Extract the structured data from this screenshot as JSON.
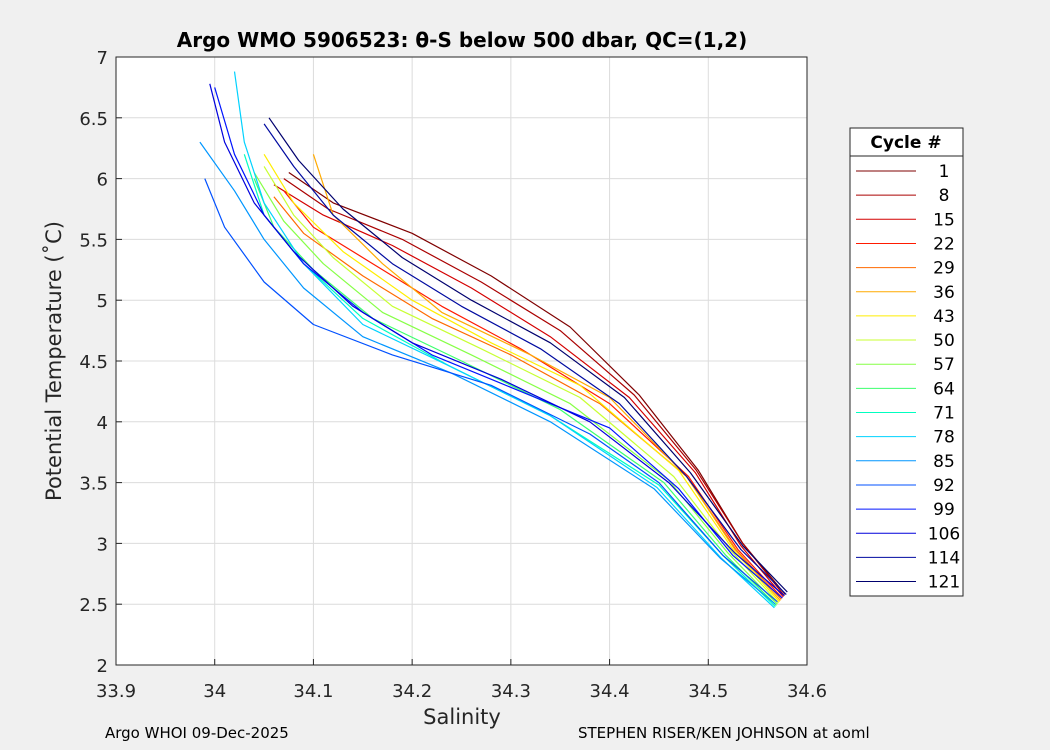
{
  "chart_data": {
    "type": "line",
    "title": "Argo WMO 5906523: θ-S below 500 dbar,  QC=(1,2)",
    "xlabel": "Salinity",
    "ylabel": "Potential Temperature (˚C)",
    "xlim": [
      33.9,
      34.6
    ],
    "ylim": [
      2,
      7
    ],
    "xticks": [
      33.9,
      34.0,
      34.1,
      34.2,
      34.3,
      34.4,
      34.5,
      34.6
    ],
    "xtick_labels": [
      "33.9",
      "34",
      "34.1",
      "34.2",
      "34.3",
      "34.4",
      "34.5",
      "34.6"
    ],
    "yticks": [
      2,
      2.5,
      3,
      3.5,
      4,
      4.5,
      5,
      5.5,
      6,
      6.5,
      7
    ],
    "ytick_labels": [
      "2",
      "2.5",
      "3",
      "3.5",
      "4",
      "4.5",
      "5",
      "5.5",
      "6",
      "6.5",
      "7"
    ],
    "grid": true,
    "legend_title": "Cycle #",
    "legend_position": "right",
    "series": [
      {
        "name": "1",
        "color": "#7f0000",
        "points": [
          [
            34.075,
            6.05
          ],
          [
            34.12,
            5.8
          ],
          [
            34.2,
            5.55
          ],
          [
            34.28,
            5.2
          ],
          [
            34.36,
            4.78
          ],
          [
            34.43,
            4.22
          ],
          [
            34.49,
            3.6
          ],
          [
            34.535,
            3.0
          ],
          [
            34.578,
            2.58
          ]
        ]
      },
      {
        "name": "8",
        "color": "#aa0000",
        "points": [
          [
            34.07,
            6.0
          ],
          [
            34.115,
            5.75
          ],
          [
            34.19,
            5.5
          ],
          [
            34.27,
            5.15
          ],
          [
            34.35,
            4.75
          ],
          [
            34.425,
            4.22
          ],
          [
            34.488,
            3.6
          ],
          [
            34.535,
            3.0
          ],
          [
            34.577,
            2.57
          ]
        ]
      },
      {
        "name": "15",
        "color": "#d40000",
        "points": [
          [
            34.06,
            5.95
          ],
          [
            34.11,
            5.7
          ],
          [
            34.18,
            5.45
          ],
          [
            34.26,
            5.1
          ],
          [
            34.34,
            4.7
          ],
          [
            34.42,
            4.2
          ],
          [
            34.487,
            3.58
          ],
          [
            34.533,
            2.98
          ],
          [
            34.576,
            2.56
          ]
        ]
      },
      {
        "name": "22",
        "color": "#ff1a00",
        "points": [
          [
            34.07,
            5.9
          ],
          [
            34.1,
            5.6
          ],
          [
            34.16,
            5.3
          ],
          [
            34.23,
            4.95
          ],
          [
            34.31,
            4.6
          ],
          [
            34.4,
            4.15
          ],
          [
            34.48,
            3.55
          ],
          [
            34.53,
            2.95
          ],
          [
            34.575,
            2.55
          ]
        ]
      },
      {
        "name": "29",
        "color": "#ff6a00",
        "points": [
          [
            34.06,
            5.85
          ],
          [
            34.09,
            5.55
          ],
          [
            34.15,
            5.2
          ],
          [
            34.22,
            4.85
          ],
          [
            34.3,
            4.55
          ],
          [
            34.39,
            4.15
          ],
          [
            34.478,
            3.55
          ],
          [
            34.528,
            2.95
          ],
          [
            34.574,
            2.54
          ]
        ]
      },
      {
        "name": "36",
        "color": "#ffaa00",
        "points": [
          [
            34.1,
            6.2
          ],
          [
            34.12,
            5.7
          ],
          [
            34.17,
            5.3
          ],
          [
            34.23,
            4.9
          ],
          [
            34.32,
            4.55
          ],
          [
            34.4,
            4.2
          ],
          [
            34.478,
            3.55
          ],
          [
            34.527,
            2.95
          ],
          [
            34.573,
            2.53
          ]
        ]
      },
      {
        "name": "43",
        "color": "#ffee00",
        "points": [
          [
            34.05,
            6.2
          ],
          [
            34.08,
            5.8
          ],
          [
            34.13,
            5.4
          ],
          [
            34.2,
            5.0
          ],
          [
            34.28,
            4.65
          ],
          [
            34.37,
            4.3
          ],
          [
            34.47,
            3.6
          ],
          [
            34.525,
            2.95
          ],
          [
            34.572,
            2.52
          ]
        ]
      },
      {
        "name": "50",
        "color": "#c8ff32",
        "points": [
          [
            34.05,
            6.1
          ],
          [
            34.08,
            5.7
          ],
          [
            34.12,
            5.35
          ],
          [
            34.18,
            4.95
          ],
          [
            34.27,
            4.6
          ],
          [
            34.37,
            4.2
          ],
          [
            34.465,
            3.55
          ],
          [
            34.523,
            2.94
          ],
          [
            34.571,
            2.51
          ]
        ]
      },
      {
        "name": "57",
        "color": "#86ff46",
        "points": [
          [
            34.04,
            6.05
          ],
          [
            34.07,
            5.65
          ],
          [
            34.11,
            5.3
          ],
          [
            34.17,
            4.9
          ],
          [
            34.26,
            4.55
          ],
          [
            34.36,
            4.15
          ],
          [
            34.46,
            3.52
          ],
          [
            34.52,
            2.92
          ],
          [
            34.57,
            2.5
          ]
        ]
      },
      {
        "name": "64",
        "color": "#3cff6e",
        "points": [
          [
            34.04,
            6.0
          ],
          [
            34.06,
            5.6
          ],
          [
            34.1,
            5.25
          ],
          [
            34.16,
            4.85
          ],
          [
            34.25,
            4.5
          ],
          [
            34.35,
            4.1
          ],
          [
            34.455,
            3.5
          ],
          [
            34.518,
            2.9
          ],
          [
            34.569,
            2.49
          ]
        ]
      },
      {
        "name": "71",
        "color": "#00ffc0",
        "points": [
          [
            34.03,
            6.2
          ],
          [
            34.05,
            5.7
          ],
          [
            34.09,
            5.3
          ],
          [
            34.15,
            4.85
          ],
          [
            34.24,
            4.45
          ],
          [
            34.34,
            4.05
          ],
          [
            34.45,
            3.48
          ],
          [
            34.515,
            2.9
          ],
          [
            34.568,
            2.48
          ]
        ]
      },
      {
        "name": "78",
        "color": "#00d2ff",
        "points": [
          [
            34.02,
            6.88
          ],
          [
            34.03,
            6.3
          ],
          [
            34.05,
            5.8
          ],
          [
            34.09,
            5.3
          ],
          [
            34.15,
            4.8
          ],
          [
            34.24,
            4.45
          ],
          [
            34.34,
            4.05
          ],
          [
            34.448,
            3.46
          ],
          [
            34.513,
            2.88
          ],
          [
            34.567,
            2.47
          ]
        ]
      },
      {
        "name": "85",
        "color": "#0096ff",
        "points": [
          [
            33.985,
            6.3
          ],
          [
            34.02,
            5.9
          ],
          [
            34.05,
            5.5
          ],
          [
            34.09,
            5.1
          ],
          [
            34.15,
            4.7
          ],
          [
            34.24,
            4.4
          ],
          [
            34.34,
            4.0
          ],
          [
            34.445,
            3.45
          ],
          [
            34.512,
            2.88
          ],
          [
            34.568,
            2.5
          ]
        ]
      },
      {
        "name": "92",
        "color": "#0050ff",
        "points": [
          [
            33.99,
            6.0
          ],
          [
            34.01,
            5.6
          ],
          [
            34.05,
            5.15
          ],
          [
            34.1,
            4.8
          ],
          [
            34.18,
            4.55
          ],
          [
            34.28,
            4.3
          ],
          [
            34.38,
            3.9
          ],
          [
            34.45,
            3.5
          ],
          [
            34.515,
            2.9
          ],
          [
            34.57,
            2.52
          ]
        ]
      },
      {
        "name": "99",
        "color": "#0014ff",
        "points": [
          [
            34.0,
            6.75
          ],
          [
            34.02,
            6.2
          ],
          [
            34.05,
            5.7
          ],
          [
            34.09,
            5.3
          ],
          [
            34.15,
            4.9
          ],
          [
            34.22,
            4.55
          ],
          [
            34.31,
            4.25
          ],
          [
            34.4,
            3.95
          ],
          [
            34.47,
            3.45
          ],
          [
            34.525,
            2.9
          ],
          [
            34.575,
            2.55
          ]
        ]
      },
      {
        "name": "106",
        "color": "#0000dc",
        "points": [
          [
            33.995,
            6.78
          ],
          [
            34.01,
            6.3
          ],
          [
            34.04,
            5.8
          ],
          [
            34.08,
            5.4
          ],
          [
            34.14,
            4.95
          ],
          [
            34.2,
            4.65
          ],
          [
            34.29,
            4.35
          ],
          [
            34.38,
            4.0
          ],
          [
            34.46,
            3.5
          ],
          [
            34.527,
            2.92
          ],
          [
            34.577,
            2.57
          ]
        ]
      },
      {
        "name": "114",
        "color": "#000aa0",
        "points": [
          [
            34.05,
            6.45
          ],
          [
            34.08,
            6.1
          ],
          [
            34.12,
            5.7
          ],
          [
            34.18,
            5.3
          ],
          [
            34.25,
            4.95
          ],
          [
            34.33,
            4.6
          ],
          [
            34.41,
            4.15
          ],
          [
            34.478,
            3.55
          ],
          [
            34.533,
            2.95
          ],
          [
            34.579,
            2.58
          ]
        ]
      },
      {
        "name": "121",
        "color": "#00006e",
        "points": [
          [
            34.055,
            6.5
          ],
          [
            34.085,
            6.15
          ],
          [
            34.13,
            5.75
          ],
          [
            34.19,
            5.35
          ],
          [
            34.26,
            5.0
          ],
          [
            34.34,
            4.65
          ],
          [
            34.415,
            4.2
          ],
          [
            34.482,
            3.58
          ],
          [
            34.535,
            2.98
          ],
          [
            34.58,
            2.6
          ]
        ]
      }
    ]
  },
  "footer": {
    "left": "Argo WHOI 09-Dec-2025",
    "right": "STEPHEN RISER/KEN JOHNSON at aoml"
  }
}
